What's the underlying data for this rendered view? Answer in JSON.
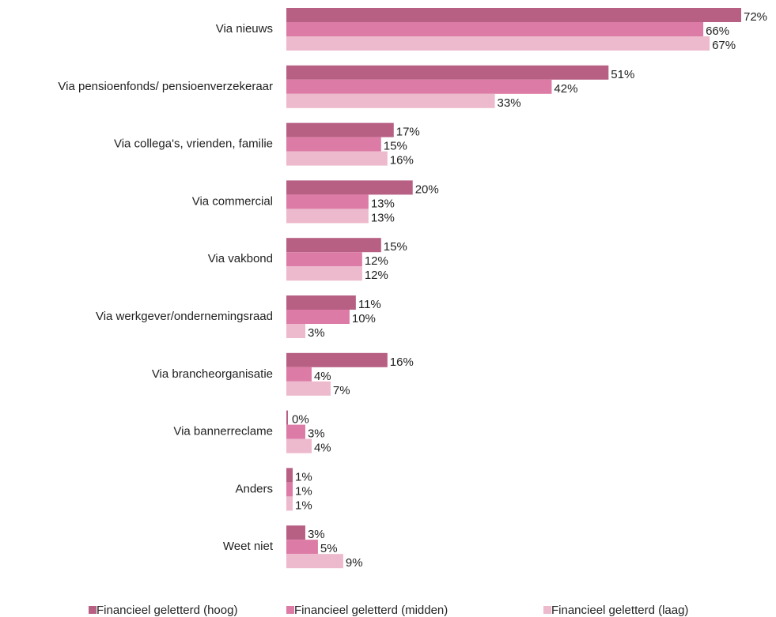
{
  "chart_data": {
    "type": "barh",
    "categories": [
      "Via nieuws",
      "Via pensioenfonds/ pensioenverzekeraar",
      "Via collega's, vrienden, familie",
      "Via commercial",
      "Via vakbond",
      "Via werkgever/ondernemingsraad",
      "Via brancheorganisatie",
      "Via bannerreclame",
      "Anders",
      "Weet niet"
    ],
    "series": [
      {
        "name": "Financieel geletterd (hoog)",
        "color": "#b85f84",
        "values": [
          72,
          51,
          17,
          20,
          15,
          11,
          16,
          0,
          1,
          3
        ],
        "value_labels": [
          "72%",
          "51%",
          "17%",
          "20%",
          "15%",
          "11%",
          "16%",
          "0%",
          "1%",
          "3%"
        ]
      },
      {
        "name": "Financieel geletterd (midden)",
        "color": "#dc7ba5",
        "values": [
          66,
          42,
          15,
          13,
          12,
          10,
          4,
          3,
          1,
          5
        ],
        "value_labels": [
          "66%",
          "42%",
          "15%",
          "13%",
          "12%",
          "10%",
          "4%",
          "3%",
          "1%",
          "5%"
        ]
      },
      {
        "name": "Financieel geletterd (laag)",
        "color": "#edb9cc",
        "values": [
          67,
          33,
          16,
          13,
          12,
          3,
          7,
          4,
          1,
          9
        ],
        "value_labels": [
          "67%",
          "33%",
          "16%",
          "13%",
          "12%",
          "3%",
          "7%",
          "4%",
          "1%",
          "9%"
        ]
      }
    ],
    "legend": "bottom"
  }
}
